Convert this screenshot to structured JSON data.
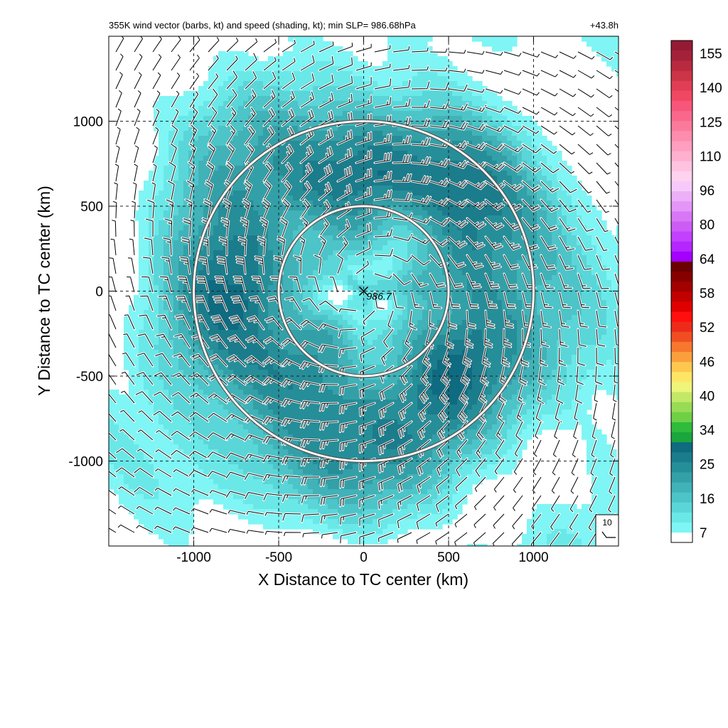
{
  "chart_data": {
    "type": "heatmap",
    "title_left": "355K wind vector (barbs, kt) and speed (shading, kt); min SLP= 986.68hPa",
    "title_right": "+43.8h",
    "xlabel": "X Distance to TC center (km)",
    "ylabel": "Y Distance to TC center (km)",
    "xlim": [
      -1500,
      1500
    ],
    "ylim": [
      -1500,
      1500
    ],
    "x_ticks": [
      -1000,
      -500,
      0,
      500,
      1000
    ],
    "y_ticks": [
      -1000,
      -500,
      0,
      500,
      1000
    ],
    "x_tick_labels": [
      "-1000",
      "-500",
      "0",
      "500",
      "1000"
    ],
    "y_tick_labels": [
      "-1000",
      "-500",
      "0",
      "500",
      "1000"
    ],
    "grid": true,
    "center_marker": {
      "x": 0,
      "y": 0,
      "label": "986.7"
    },
    "range_circles_km": [
      500,
      1000
    ],
    "reference_barb_label": "10",
    "colorbar": {
      "labels": [
        "7",
        "16",
        "25",
        "34",
        "40",
        "46",
        "52",
        "58",
        "64",
        "80",
        "96",
        "110",
        "125",
        "140",
        "155"
      ],
      "colors": [
        "#ffffff",
        "#7ff5f5",
        "#6ae8e8",
        "#5ad6d8",
        "#4cc4c8",
        "#40b2b8",
        "#33a0a8",
        "#268e98",
        "#1b7c8c",
        "#0f6b80",
        "#1aa63c",
        "#2fbb3c",
        "#6fd046",
        "#98dc55",
        "#c3e868",
        "#eef57a",
        "#ffe566",
        "#fec850",
        "#fb9f3e",
        "#f7772e",
        "#f04e22",
        "#ee2b1a",
        "#ff0f0f",
        "#e00000",
        "#c20000",
        "#a30000",
        "#870000",
        "#6b0000",
        "#a200ff",
        "#b426ff",
        "#c241ff",
        "#cd5cf5",
        "#d877f5",
        "#e396f7",
        "#ebb0f7",
        "#f7c9fa",
        "#ffd2ef",
        "#ffc3e0",
        "#ffb0cf",
        "#ff9ebf",
        "#fd8cad",
        "#fb7a9c",
        "#f9688b",
        "#f7567a",
        "#f04862",
        "#e03e55",
        "#cc3448",
        "#b82a3f",
        "#a4213a",
        "#951b35"
      ]
    },
    "wind_speed_field": {
      "units": "kt",
      "structure": "ring maximum near 700 km radius",
      "radial_profile_r_km": [
        0,
        150,
        300,
        500,
        700,
        900,
        1100,
        1300,
        1500
      ],
      "radial_profile_speed_kt": [
        14,
        9,
        16,
        22,
        29,
        27,
        20,
        12,
        6
      ]
    }
  }
}
